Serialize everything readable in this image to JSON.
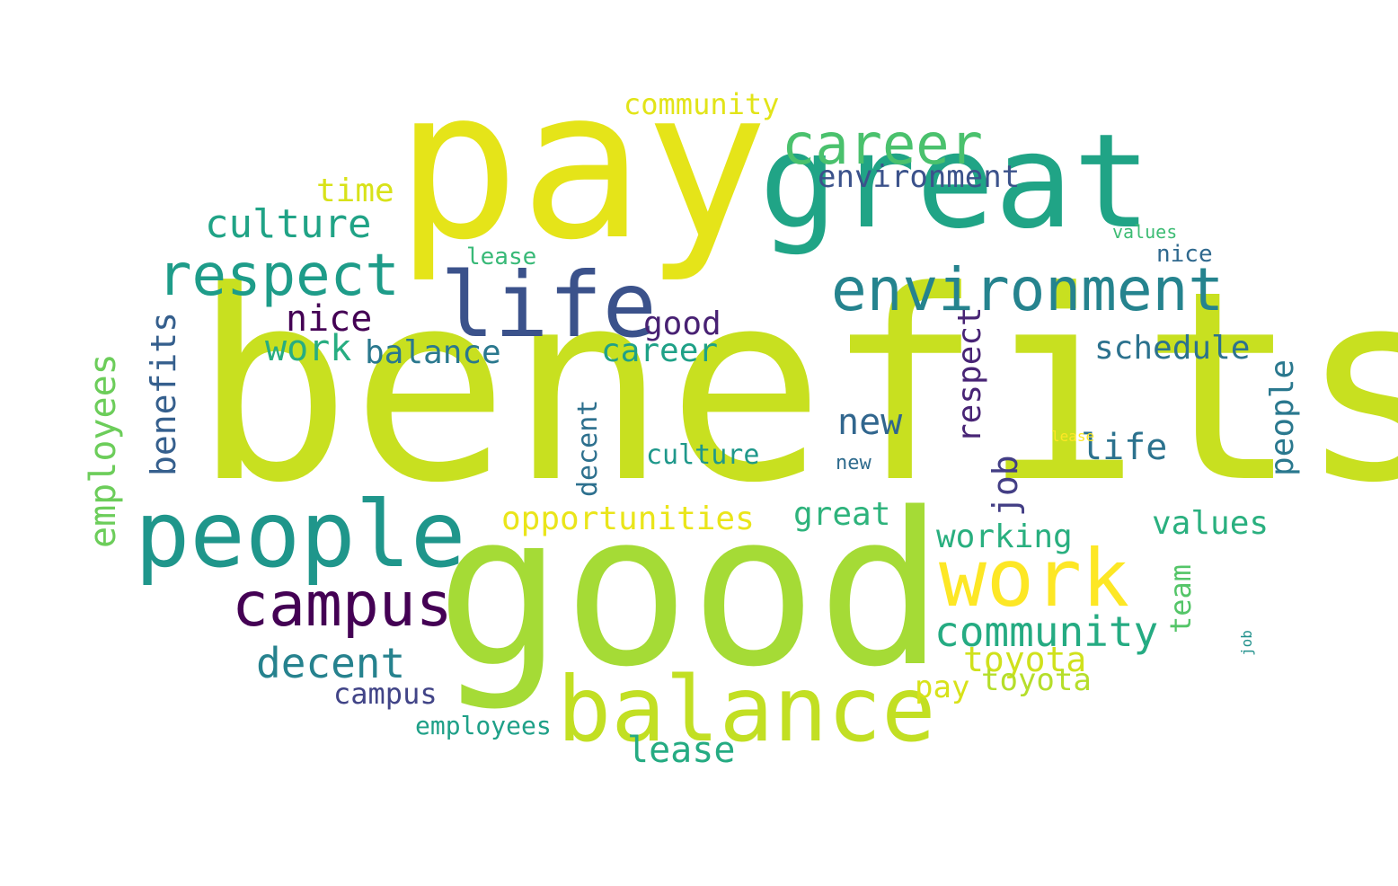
{
  "words": [
    {
      "text": "benefits",
      "color": "#c8e020"
    },
    {
      "text": "good",
      "color": "#a5db36"
    },
    {
      "text": "pay",
      "color": "#e5e419"
    },
    {
      "text": "great",
      "color": "#20a486"
    },
    {
      "text": "life",
      "color": "#3b528b"
    },
    {
      "text": "people",
      "color": "#1f968b"
    },
    {
      "text": "balance",
      "color": "#c2df23"
    },
    {
      "text": "environment",
      "color": "#25838e"
    },
    {
      "text": "respect",
      "color": "#1e9c89"
    },
    {
      "text": "career",
      "color": "#4ac16d"
    },
    {
      "text": "campus",
      "color": "#440154"
    },
    {
      "text": "work",
      "color": "#fde725"
    },
    {
      "text": "employees",
      "color": "#6ccd5a"
    },
    {
      "text": "culture",
      "color": "#20a386"
    },
    {
      "text": "community",
      "color": "#25ab82"
    },
    {
      "text": "decent",
      "color": "#26828e"
    },
    {
      "text": "opportunities",
      "color": "#eae51a"
    },
    {
      "text": "schedule",
      "color": "#2c728e"
    },
    {
      "text": "toyota",
      "color": "#d0e11c"
    },
    {
      "text": "nice",
      "color": "#440154"
    },
    {
      "text": "good",
      "color": "#482173"
    },
    {
      "text": "balance",
      "color": "#2a788e"
    },
    {
      "text": "lease",
      "color": "#25ab82"
    },
    {
      "text": "new",
      "color": "#31668e"
    },
    {
      "text": "working",
      "color": "#29af7f"
    },
    {
      "text": "values",
      "color": "#2ab07f"
    },
    {
      "text": "job",
      "color": "#433e85"
    },
    {
      "text": "benefits",
      "color": "#355f8d"
    },
    {
      "text": "time",
      "color": "#d8e219"
    },
    {
      "text": "culture",
      "color": "#1f988b"
    },
    {
      "text": "work",
      "color": "#27ad81"
    },
    {
      "text": "career",
      "color": "#1fa187"
    },
    {
      "text": "great",
      "color": "#2eb37c"
    },
    {
      "text": "community",
      "color": "#e2e418"
    },
    {
      "text": "environment",
      "color": "#3b528b"
    },
    {
      "text": "respect",
      "color": "#482475"
    },
    {
      "text": "life",
      "color": "#2c728e"
    },
    {
      "text": "people",
      "color": "#2a788e"
    },
    {
      "text": "campus",
      "color": "#414487"
    },
    {
      "text": "employees",
      "color": "#1fa088"
    },
    {
      "text": "decent",
      "color": "#2d708e"
    },
    {
      "text": "toyota",
      "color": "#b5de2b"
    },
    {
      "text": "pay",
      "color": "#d8e219"
    },
    {
      "text": "team",
      "color": "#54c568"
    },
    {
      "text": "lease",
      "color": "#38b977"
    },
    {
      "text": "lease",
      "color": "#fde725"
    },
    {
      "text": "job",
      "color": "#21918c"
    },
    {
      "text": "values",
      "color": "#3dbc74"
    },
    {
      "text": "nice",
      "color": "#30698e"
    },
    {
      "text": "new",
      "color": "#2f6c8e"
    }
  ]
}
